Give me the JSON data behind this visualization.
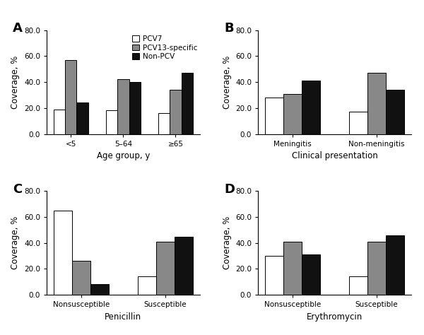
{
  "panel_A": {
    "label": "A",
    "categories": [
      "<5",
      "5–64",
      "≥65"
    ],
    "xlabel": "Age group, y",
    "ylabel": "Coverage, %",
    "ylim": [
      0,
      80
    ],
    "yticks": [
      0.0,
      20.0,
      40.0,
      60.0,
      80.0
    ],
    "pcv7": [
      19,
      18,
      16
    ],
    "pcv13": [
      57,
      42,
      34
    ],
    "nonpcv": [
      24,
      40,
      47
    ],
    "legend": true
  },
  "panel_B": {
    "label": "B",
    "categories": [
      "Meningitis",
      "Non-meningitis"
    ],
    "xlabel": "Clinical presentation",
    "ylabel": "Coverage, %",
    "ylim": [
      0,
      80
    ],
    "yticks": [
      0.0,
      20.0,
      40.0,
      60.0,
      80.0
    ],
    "pcv7": [
      28,
      17
    ],
    "pcv13": [
      31,
      47
    ],
    "nonpcv": [
      41,
      34
    ],
    "legend": false
  },
  "panel_C": {
    "label": "C",
    "categories": [
      "Nonsusceptible",
      "Susceptible"
    ],
    "xlabel": "Penicillin",
    "ylabel": "Coverage, %",
    "ylim": [
      0,
      80
    ],
    "yticks": [
      0.0,
      20.0,
      40.0,
      60.0,
      80.0
    ],
    "pcv7": [
      65,
      14
    ],
    "pcv13": [
      26,
      41
    ],
    "nonpcv": [
      8,
      45
    ],
    "legend": false
  },
  "panel_D": {
    "label": "D",
    "categories": [
      "Nonsusceptible",
      "Susceptible"
    ],
    "xlabel": "Erythromycin",
    "ylabel": "Coverage, %",
    "ylim": [
      0,
      80
    ],
    "yticks": [
      0.0,
      20.0,
      40.0,
      60.0,
      80.0
    ],
    "pcv7": [
      30,
      14
    ],
    "pcv13": [
      41,
      41
    ],
    "nonpcv": [
      31,
      46
    ],
    "legend": false
  },
  "colors": {
    "pcv7": "#ffffff",
    "pcv13": "#888888",
    "nonpcv": "#111111"
  },
  "bar_edge_color": "#000000",
  "bar_width": 0.22,
  "legend_labels": [
    "PCV7",
    "PCV13-specific",
    "Non-PCV"
  ],
  "label_fontsize": 8.5,
  "tick_fontsize": 7.5,
  "panel_label_fontsize": 13
}
